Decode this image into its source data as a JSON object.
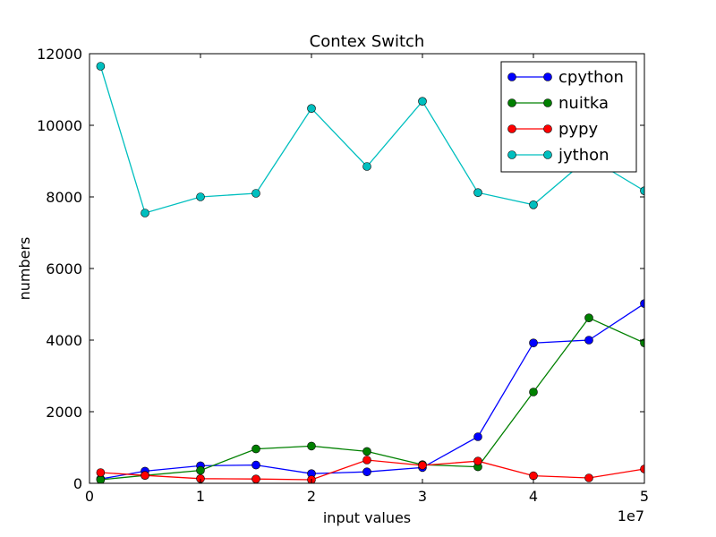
{
  "chart_data": {
    "type": "line",
    "title": "Contex Switch",
    "xlabel": "input values",
    "ylabel": "numbers",
    "x_offset_label": "1e7",
    "x": [
      1000000,
      5000000,
      10000000,
      15000000,
      20000000,
      25000000,
      30000000,
      35000000,
      40000000,
      45000000,
      50000000
    ],
    "xlim": [
      0,
      50000000
    ],
    "ylim": [
      0,
      12000
    ],
    "x_ticks": [
      0,
      10000000,
      20000000,
      30000000,
      40000000,
      50000000
    ],
    "x_tick_labels": [
      "0",
      "1",
      "2",
      "3",
      "4",
      "5"
    ],
    "y_ticks": [
      0,
      2000,
      4000,
      6000,
      8000,
      10000,
      12000
    ],
    "y_tick_labels": [
      "0",
      "2000",
      "4000",
      "6000",
      "8000",
      "10000",
      "12000"
    ],
    "grid": false,
    "legend_position": "top-right",
    "series": [
      {
        "name": "cpython",
        "color": "#0000ff",
        "values": [
          120,
          340,
          490,
          510,
          270,
          320,
          440,
          1300,
          3920,
          4000,
          5020
        ]
      },
      {
        "name": "nuitka",
        "color": "#008000",
        "values": [
          100,
          220,
          360,
          960,
          1040,
          890,
          520,
          460,
          2550,
          4620,
          3920
        ]
      },
      {
        "name": "pypy",
        "color": "#ff0000",
        "values": [
          300,
          220,
          130,
          120,
          100,
          650,
          500,
          620,
          210,
          150,
          400
        ]
      },
      {
        "name": "jython",
        "color": "#00bfbf",
        "values": [
          11650,
          7550,
          8000,
          8100,
          10470,
          8850,
          10670,
          8120,
          7780,
          9100,
          8170
        ]
      }
    ]
  }
}
